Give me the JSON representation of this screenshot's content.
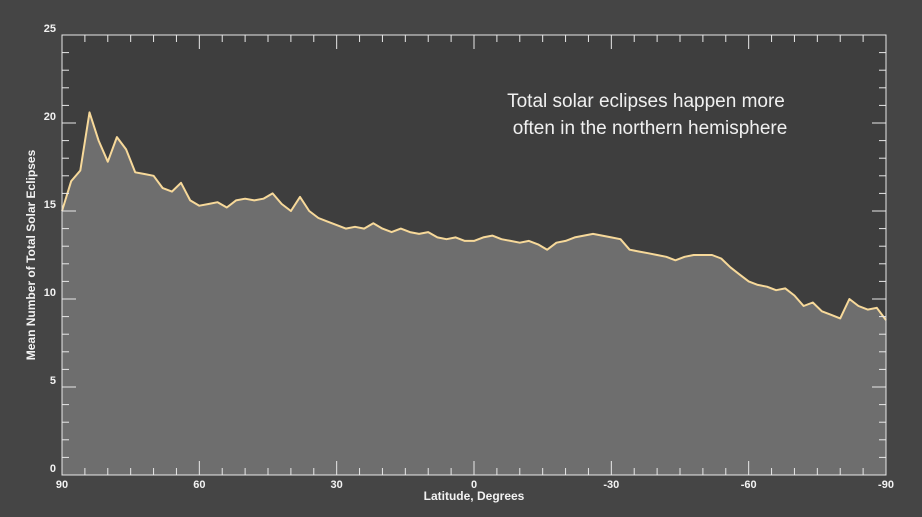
{
  "chart_data": {
    "type": "area",
    "xlabel": "Latitude, Degrees",
    "ylabel": "Mean Number of Total Solar Eclipses",
    "annotation": [
      "Total solar eclipses happen more",
      "often in the northern hemisphere"
    ],
    "xlim": [
      90,
      -90
    ],
    "ylim": [
      0,
      25
    ],
    "xticks": [
      90,
      60,
      30,
      0,
      -30,
      -60,
      -90
    ],
    "yticks": [
      0,
      5,
      10,
      15,
      20,
      25
    ],
    "minor_xticks": [
      85,
      80,
      75,
      70,
      65,
      55,
      50,
      45,
      40,
      35,
      25,
      20,
      15,
      10,
      5,
      -5,
      -10,
      -15,
      -20,
      -25,
      -35,
      -40,
      -45,
      -50,
      -55,
      -65,
      -70,
      -75,
      -80,
      -85
    ],
    "minor_yticks": [
      1,
      2,
      3,
      4,
      6,
      7,
      8,
      9,
      11,
      12,
      13,
      14,
      16,
      17,
      18,
      19,
      21,
      22,
      23,
      24
    ],
    "fill_color": "#6e6e6e",
    "line_color": "#f7d99a",
    "x": [
      90,
      88,
      86,
      84,
      82,
      80,
      78,
      76,
      74,
      72,
      70,
      68,
      66,
      64,
      62,
      60,
      58,
      56,
      54,
      52,
      50,
      48,
      46,
      44,
      42,
      40,
      38,
      36,
      34,
      32,
      30,
      28,
      26,
      24,
      22,
      20,
      18,
      16,
      14,
      12,
      10,
      8,
      6,
      4,
      2,
      0,
      -2,
      -4,
      -6,
      -8,
      -10,
      -12,
      -14,
      -16,
      -18,
      -20,
      -22,
      -24,
      -26,
      -28,
      -30,
      -32,
      -34,
      -36,
      -38,
      -40,
      -42,
      -44,
      -46,
      -48,
      -50,
      -52,
      -54,
      -56,
      -58,
      -60,
      -62,
      -64,
      -66,
      -68,
      -70,
      -72,
      -74,
      -76,
      -78,
      -80,
      -82,
      -84,
      -86,
      -88,
      -90
    ],
    "values": [
      15.0,
      16.7,
      17.3,
      20.6,
      19.0,
      17.8,
      19.2,
      18.5,
      17.2,
      17.1,
      17.0,
      16.3,
      16.1,
      16.6,
      15.6,
      15.3,
      15.4,
      15.5,
      15.2,
      15.6,
      15.7,
      15.6,
      15.7,
      16.0,
      15.4,
      15.0,
      15.8,
      15.0,
      14.6,
      14.4,
      14.2,
      14.0,
      14.1,
      14.0,
      14.3,
      14.0,
      13.8,
      14.0,
      13.8,
      13.7,
      13.8,
      13.5,
      13.4,
      13.5,
      13.3,
      13.3,
      13.5,
      13.6,
      13.4,
      13.3,
      13.2,
      13.3,
      13.1,
      12.8,
      13.2,
      13.3,
      13.5,
      13.6,
      13.7,
      13.6,
      13.5,
      13.4,
      12.8,
      12.7,
      12.6,
      12.5,
      12.4,
      12.2,
      12.4,
      12.5,
      12.5,
      12.5,
      12.3,
      11.8,
      11.4,
      11.0,
      10.8,
      10.7,
      10.5,
      10.6,
      10.2,
      9.6,
      9.8,
      9.3,
      9.1,
      8.9,
      10.0,
      9.6,
      9.4,
      9.5,
      8.8
    ]
  }
}
